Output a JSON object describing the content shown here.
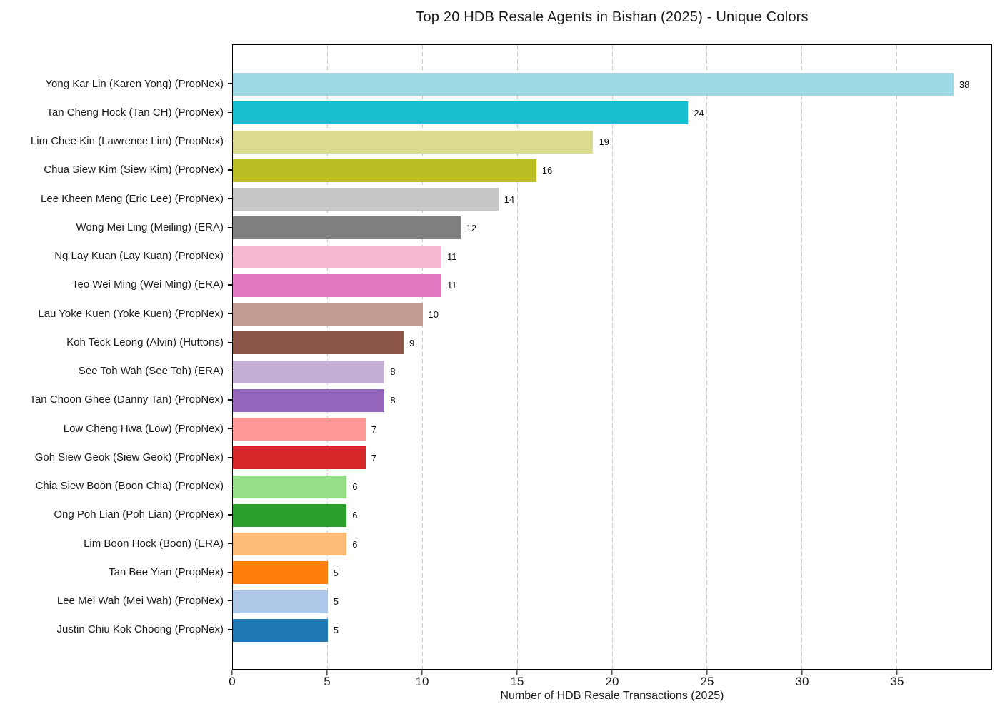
{
  "chart_data": {
    "type": "bar",
    "orientation": "horizontal",
    "title": "Top 20 HDB Resale Agents in Bishan (2025) - Unique Colors",
    "xlabel": "Number of HDB Resale Transactions (2025)",
    "ylabel": "",
    "categories": [
      "Yong Kar Lin (Karen Yong) (PropNex)",
      "Tan Cheng Hock (Tan CH) (PropNex)",
      "Lim Chee Kin (Lawrence Lim) (PropNex)",
      "Chua Siew Kim (Siew Kim) (PropNex)",
      "Lee Kheen Meng (Eric Lee) (PropNex)",
      "Wong Mei Ling (Meiling) (ERA)",
      "Ng Lay Kuan (Lay Kuan) (PropNex)",
      "Teo Wei Ming (Wei Ming) (ERA)",
      "Lau Yoke Kuen (Yoke Kuen) (PropNex)",
      "Koh Teck Leong (Alvin) (Huttons)",
      "See Toh Wah (See Toh) (ERA)",
      "Tan Choon Ghee (Danny Tan) (PropNex)",
      "Low Cheng Hwa (Low) (PropNex)",
      "Goh Siew Geok (Siew Geok) (PropNex)",
      "Chia Siew Boon (Boon Chia) (PropNex)",
      "Ong Poh Lian (Poh Lian) (PropNex)",
      "Lim Boon Hock (Boon) (ERA)",
      "Tan Bee Yian (PropNex)",
      "Lee Mei Wah (Mei Wah) (PropNex)",
      "Justin Chiu Kok Choong (PropNex)"
    ],
    "values": [
      38,
      24,
      19,
      16,
      14,
      12,
      11,
      11,
      10,
      9,
      8,
      8,
      7,
      7,
      6,
      6,
      6,
      5,
      5,
      5
    ],
    "bar_colors": [
      "#9edae5",
      "#17becf",
      "#dbdb8d",
      "#bcbd22",
      "#c7c7c7",
      "#7f7f7f",
      "#f7b6d2",
      "#e377c2",
      "#c49c94",
      "#8c564b",
      "#c5b0d5",
      "#9467bd",
      "#ff9896",
      "#d62728",
      "#98df8a",
      "#2ca02c",
      "#ffbb78",
      "#ff7f0e",
      "#aec7e8",
      "#1f77b4"
    ],
    "xlim": [
      0,
      40
    ],
    "xticks": [
      0,
      5,
      10,
      15,
      20,
      25,
      30,
      35
    ],
    "grid": {
      "axis": "x",
      "style": "dashed",
      "color": "#c9c9c9"
    },
    "bar_value_labels_shown": true,
    "legend": "none",
    "colors": {
      "text": "#1a1a1a",
      "spine": "#000000",
      "background": "#ffffff"
    }
  }
}
